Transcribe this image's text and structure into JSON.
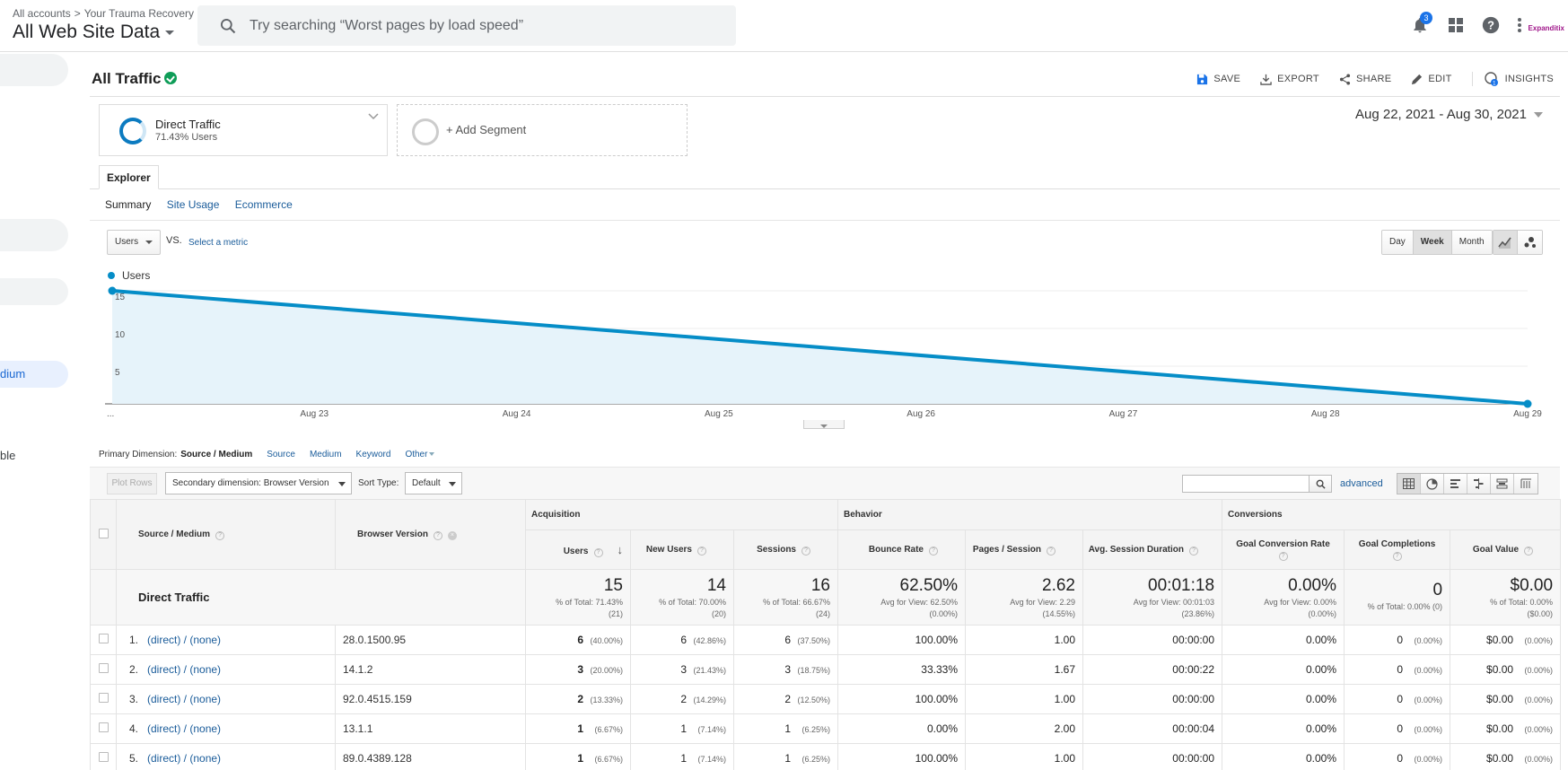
{
  "header": {
    "breadcrumb": [
      "All accounts",
      "Your Trauma Recovery"
    ],
    "breadcrumb_sep": ">",
    "view_name": "All Web Site Data",
    "search_placeholder": "Try searching “Worst pages by load speed”",
    "notification_count": "3",
    "account_logo_text": "Expanditix"
  },
  "sidebar": {
    "active_item": "dium",
    "partial_item": "ble"
  },
  "report": {
    "title": "All Traffic",
    "actions": {
      "save": "SAVE",
      "export": "EXPORT",
      "share": "SHARE",
      "edit": "EDIT",
      "insights": "INSIGHTS"
    },
    "insights_badge": "1",
    "date_range": "Aug 22, 2021 - Aug 30, 2021"
  },
  "segments": {
    "active": {
      "name": "Direct Traffic",
      "pct": "71.43% Users"
    },
    "add_label": "+ Add Segment"
  },
  "explorer": {
    "tab": "Explorer",
    "subtabs": [
      "Summary",
      "Site Usage",
      "Ecommerce"
    ]
  },
  "chart_controls": {
    "metric": "Users",
    "vs": "VS.",
    "select_metric": "Select a metric",
    "granularity": [
      "Day",
      "Week",
      "Month"
    ],
    "selected_granularity": "Week"
  },
  "chart_data": {
    "type": "area",
    "series": [
      {
        "name": "Users",
        "values": [
          15,
          0
        ]
      }
    ],
    "x_points": [
      0,
      7
    ],
    "x_tick_labels": [
      "...",
      "Aug 23",
      "Aug 24",
      "Aug 25",
      "Aug 26",
      "Aug 27",
      "Aug 28",
      "Aug 29"
    ],
    "y_ticks": [
      15,
      10,
      5
    ],
    "ylim": [
      0,
      15
    ],
    "color": "#058dc7",
    "fill": "#e6f3fa",
    "grid": true,
    "legend": "top-left"
  },
  "dimensions": {
    "label": "Primary Dimension:",
    "selected": "Source / Medium",
    "options": [
      "Source",
      "Medium",
      "Keyword"
    ],
    "other": "Other"
  },
  "table_toolbar": {
    "plot_rows": "Plot Rows",
    "secondary": "Secondary dimension: Browser Version",
    "sort_label": "Sort Type:",
    "sort_value": "Default",
    "advanced": "advanced"
  },
  "table": {
    "groups": {
      "acquisition": "Acquisition",
      "behavior": "Behavior",
      "conversions": "Conversions"
    },
    "columns": {
      "source_medium": "Source / Medium",
      "browser_version": "Browser Version",
      "users": "Users",
      "new_users": "New Users",
      "sessions": "Sessions",
      "bounce_rate": "Bounce Rate",
      "pages_session": "Pages / Session",
      "avg_session": "Avg. Session Duration",
      "goal_conv": "Goal Conversion Rate",
      "goal_completions": "Goal Completions",
      "goal_value": "Goal Value"
    },
    "totals": {
      "name": "Direct Traffic",
      "users": {
        "value": "15",
        "sub1": "% of Total: 71.43%",
        "sub2": "(21)"
      },
      "new_users": {
        "value": "14",
        "sub1": "% of Total: 70.00%",
        "sub2": "(20)"
      },
      "sessions": {
        "value": "16",
        "sub1": "% of Total: 66.67%",
        "sub2": "(24)"
      },
      "bounce_rate": {
        "value": "62.50%",
        "sub1": "Avg for View: 62.50%",
        "sub2": "(0.00%)"
      },
      "pages_session": {
        "value": "2.62",
        "sub1": "Avg for View: 2.29",
        "sub2": "(14.55%)"
      },
      "avg_session": {
        "value": "00:01:18",
        "sub1": "Avg for View: 00:01:03",
        "sub2": "(23.86%)"
      },
      "goal_conv": {
        "value": "0.00%",
        "sub1": "Avg for View: 0.00%",
        "sub2": "(0.00%)"
      },
      "goal_completions": {
        "value": "0",
        "sub1": "% of Total: 0.00% (0)",
        "sub2": ""
      },
      "goal_value": {
        "value": "$0.00",
        "sub1": "% of Total: 0.00%",
        "sub2": "($0.00)"
      }
    },
    "rows": [
      {
        "idx": "1.",
        "source": "(direct) / (none)",
        "browser": "28.0.1500.95",
        "users": "6",
        "users_pct": "(40.00%)",
        "new_users": "6",
        "new_users_pct": "(42.86%)",
        "sessions": "6",
        "sessions_pct": "(37.50%)",
        "bounce": "100.00%",
        "pages": "1.00",
        "duration": "00:00:00",
        "goal_conv": "0.00%",
        "completions": "0",
        "completions_pct": "(0.00%)",
        "value": "$0.00",
        "value_pct": "(0.00%)"
      },
      {
        "idx": "2.",
        "source": "(direct) / (none)",
        "browser": "14.1.2",
        "users": "3",
        "users_pct": "(20.00%)",
        "new_users": "3",
        "new_users_pct": "(21.43%)",
        "sessions": "3",
        "sessions_pct": "(18.75%)",
        "bounce": "33.33%",
        "pages": "1.67",
        "duration": "00:00:22",
        "goal_conv": "0.00%",
        "completions": "0",
        "completions_pct": "(0.00%)",
        "value": "$0.00",
        "value_pct": "(0.00%)"
      },
      {
        "idx": "3.",
        "source": "(direct) / (none)",
        "browser": "92.0.4515.159",
        "users": "2",
        "users_pct": "(13.33%)",
        "new_users": "2",
        "new_users_pct": "(14.29%)",
        "sessions": "2",
        "sessions_pct": "(12.50%)",
        "bounce": "100.00%",
        "pages": "1.00",
        "duration": "00:00:00",
        "goal_conv": "0.00%",
        "completions": "0",
        "completions_pct": "(0.00%)",
        "value": "$0.00",
        "value_pct": "(0.00%)"
      },
      {
        "idx": "4.",
        "source": "(direct) / (none)",
        "browser": "13.1.1",
        "users": "1",
        "users_pct": "(6.67%)",
        "new_users": "1",
        "new_users_pct": "(7.14%)",
        "sessions": "1",
        "sessions_pct": "(6.25%)",
        "bounce": "0.00%",
        "pages": "2.00",
        "duration": "00:00:04",
        "goal_conv": "0.00%",
        "completions": "0",
        "completions_pct": "(0.00%)",
        "value": "$0.00",
        "value_pct": "(0.00%)"
      },
      {
        "idx": "5.",
        "source": "(direct) / (none)",
        "browser": "89.0.4389.128",
        "users": "1",
        "users_pct": "(6.67%)",
        "new_users": "1",
        "new_users_pct": "(7.14%)",
        "sessions": "1",
        "sessions_pct": "(6.25%)",
        "bounce": "100.00%",
        "pages": "1.00",
        "duration": "00:00:00",
        "goal_conv": "0.00%",
        "completions": "0",
        "completions_pct": "(0.00%)",
        "value": "$0.00",
        "value_pct": "(0.00%)"
      }
    ]
  }
}
